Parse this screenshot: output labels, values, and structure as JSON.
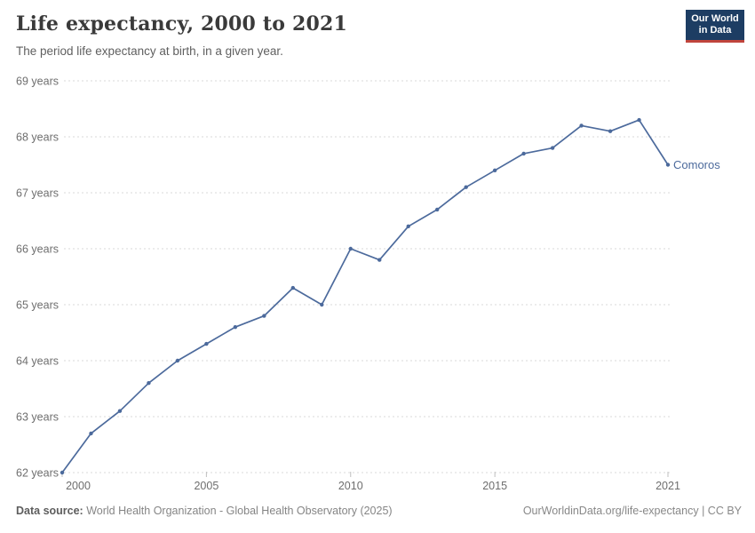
{
  "header": {
    "title": "Life expectancy, 2000 to 2021",
    "subtitle": "The period life expectancy at birth, in a given year."
  },
  "logo": {
    "line1": "Our World",
    "line2": "in Data"
  },
  "footer": {
    "datasource_label": "Data source:",
    "datasource_value": " World Health Organization - Global Health Observatory (2025)",
    "link": "OurWorldinData.org/life-expectancy",
    "license": " | CC BY"
  },
  "colors": {
    "line": "#4c6a9c",
    "entity_label": "#4c6a9c",
    "grid": "#d9d9d9",
    "tick": "#bfbfbf",
    "axis_text": "#6e6e6e",
    "logo_bg": "#1d3d63",
    "logo_red": "#c0443c"
  },
  "chart_data": {
    "type": "line",
    "title": "Life expectancy, 2000 to 2021",
    "xlabel": "",
    "ylabel": "",
    "x": [
      2000,
      2001,
      2002,
      2003,
      2004,
      2005,
      2006,
      2007,
      2008,
      2009,
      2010,
      2011,
      2012,
      2013,
      2014,
      2015,
      2016,
      2017,
      2018,
      2019,
      2020,
      2021
    ],
    "series": [
      {
        "name": "Comoros",
        "values": [
          62.0,
          62.7,
          63.1,
          63.6,
          64.0,
          64.3,
          64.6,
          64.8,
          65.3,
          65.0,
          66.0,
          65.8,
          66.4,
          66.7,
          67.1,
          67.4,
          67.7,
          67.8,
          68.2,
          68.1,
          68.3,
          67.5
        ]
      }
    ],
    "x_ticks": [
      2000,
      2005,
      2010,
      2015,
      2021
    ],
    "y_ticks": [
      62,
      63,
      64,
      65,
      66,
      67,
      68,
      69
    ],
    "y_tick_suffix": " years",
    "xlim": [
      2000,
      2021
    ],
    "ylim": [
      62,
      69
    ],
    "grid": "horizontal-dashed",
    "legend_position": "end-of-line-label"
  }
}
